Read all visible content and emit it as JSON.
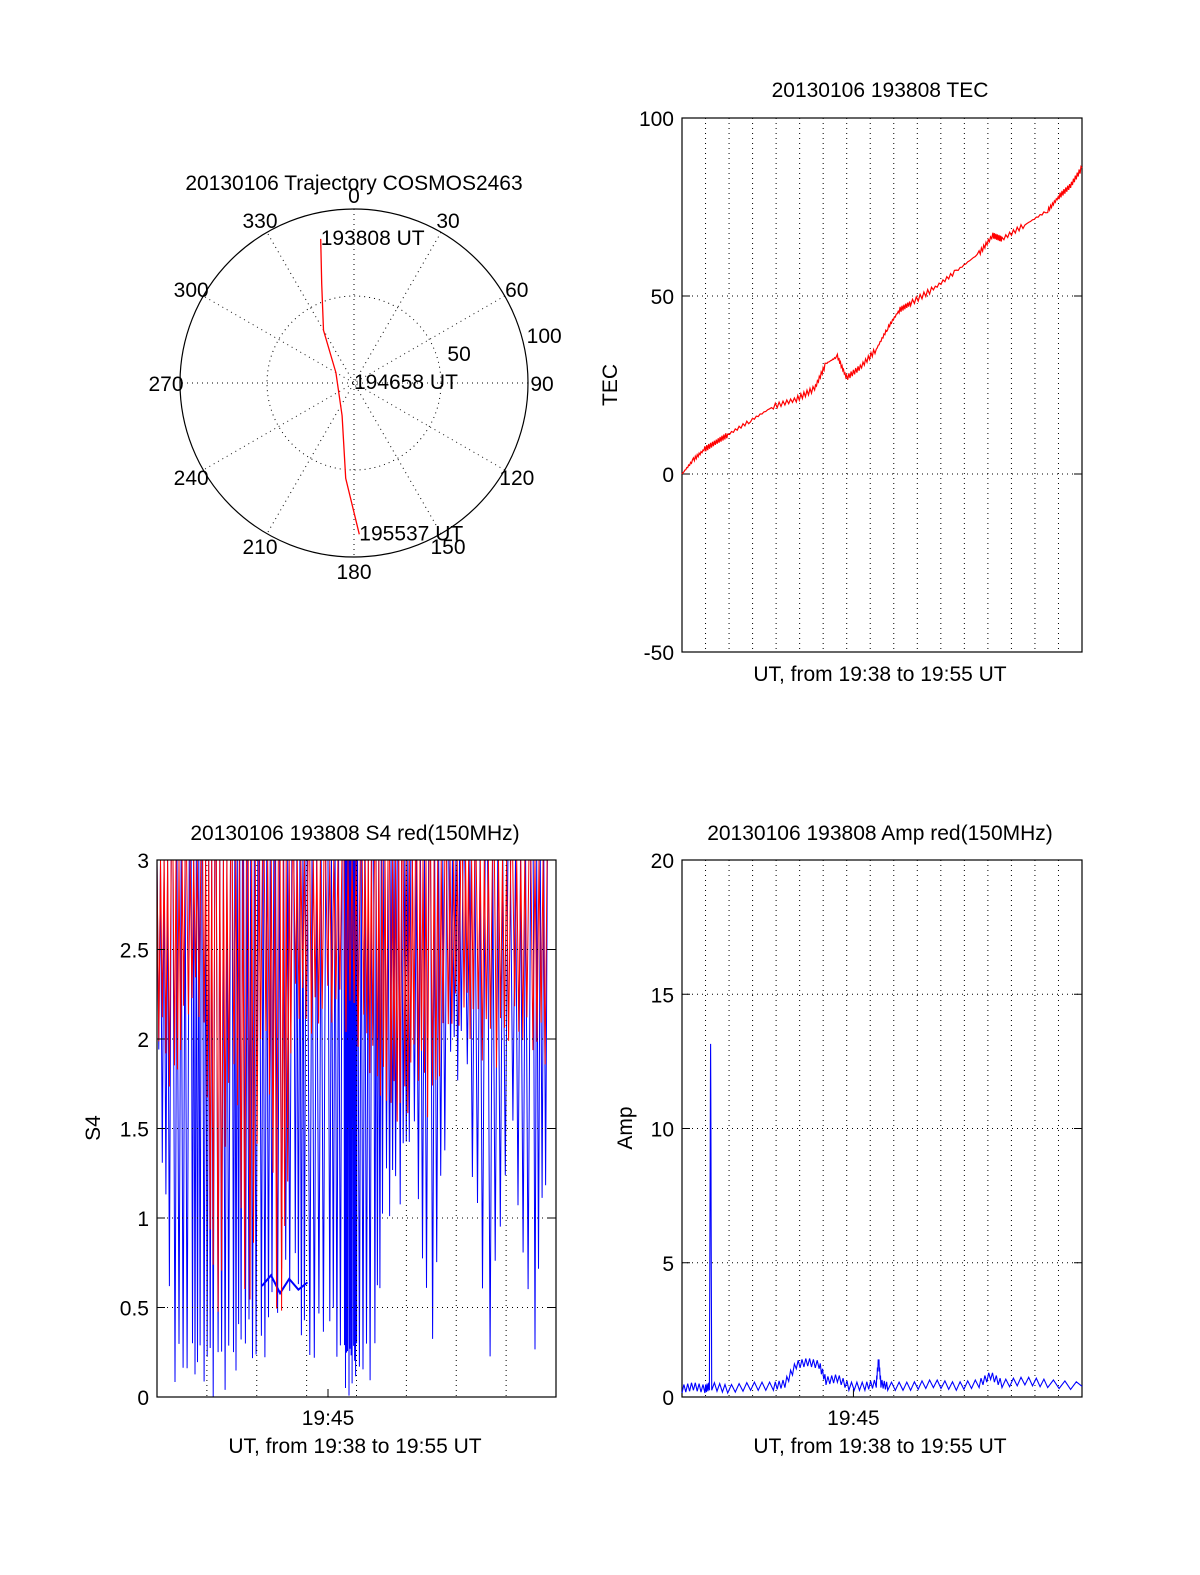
{
  "colors": {
    "red": "#ff0000",
    "blue": "#0000ff",
    "axis": "#000000"
  },
  "chart_data": [
    {
      "id": "trajectory",
      "type": "polar",
      "title": "20130106 Trajectory COSMOS2463",
      "angle_labels": [
        "0",
        "30",
        "60",
        "90",
        "120",
        "150",
        "180",
        "210",
        "240",
        "270",
        "300",
        "330"
      ],
      "radius_labels": [
        "50",
        "100"
      ],
      "rlim": [
        0,
        100
      ],
      "grid": true,
      "trajectory": {
        "color": "red",
        "points": [
          {
            "az": 347,
            "r": 85
          },
          {
            "az": 342,
            "r": 60
          },
          {
            "az": 330,
            "r": 35
          },
          {
            "az": 300,
            "r": 12
          },
          {
            "az": 200,
            "r": 20
          },
          {
            "az": 185,
            "r": 55
          },
          {
            "az": 178,
            "r": 87
          }
        ],
        "labels": [
          {
            "text": "193808 UT",
            "az": 347,
            "r": 85
          },
          {
            "text": "194658 UT",
            "az": 0,
            "r": 0
          },
          {
            "text": "195537 UT",
            "az": 178,
            "r": 87
          }
        ]
      }
    },
    {
      "id": "tec",
      "type": "line",
      "title": "20130106 193808 TEC",
      "xlabel": "UT, from 19:38 to 19:55 UT",
      "ylabel": "TEC",
      "ylim": [
        -50,
        100
      ],
      "yticks": [
        "-50",
        "0",
        "50",
        "100"
      ],
      "xlim_minutes": [
        0,
        17.5
      ],
      "grid": true,
      "series": [
        {
          "color": "red",
          "x": [
            0,
            0.5,
            1,
            1.5,
            2,
            3,
            4,
            5,
            5.8,
            6.3,
            6.8,
            7.2,
            7.8,
            8.5,
            9,
            9.5,
            10,
            11,
            12,
            13,
            13.6,
            14,
            15,
            16,
            16.5,
            17,
            17.5
          ],
          "y": [
            0,
            4,
            7,
            9,
            11,
            15,
            19,
            21,
            24,
            31,
            33,
            27,
            30,
            35,
            41,
            46,
            48,
            52,
            57,
            62,
            67,
            66,
            70,
            74,
            78,
            81,
            86
          ]
        }
      ]
    },
    {
      "id": "s4",
      "type": "line",
      "title": "20130106 193808 S4 red(150MHz)",
      "xlabel": "UT, from 19:38 to 19:55 UT",
      "ylabel": "S4",
      "ylim": [
        0,
        3
      ],
      "yticks": [
        "0",
        "0.5",
        "1",
        "1.5",
        "2",
        "2.5",
        "3"
      ],
      "xticks": [
        {
          "label": "19:45",
          "minute": 7.5
        }
      ],
      "xlim_minutes": [
        0,
        17.5
      ],
      "grid": true,
      "series": [
        {
          "color": "blue",
          "x": [
            0,
            0.7,
            1.5,
            2,
            2.6,
            3.3,
            3.8,
            4.5,
            5.2,
            6,
            6.6,
            7.5,
            8.2,
            8.4,
            8.6,
            8.8,
            9.5,
            10,
            10.6,
            11.2,
            12,
            12.8,
            13.5,
            14.5,
            15.5,
            16.5,
            17.2
          ],
          "y_low": [
            1.9,
            0,
            0,
            0,
            0,
            0,
            0.2,
            0,
            0.4,
            0.6,
            0,
            0.3,
            0,
            0,
            0,
            0,
            0,
            1.0,
            1.0,
            1.4,
            0,
            1.7,
            1.8,
            0,
            1.4,
            0,
            1.5
          ],
          "y_high": [
            3,
            3,
            3,
            3,
            3,
            3,
            3,
            3,
            3,
            3,
            3,
            3,
            3,
            3,
            3,
            3,
            3,
            3,
            3,
            3,
            3,
            3,
            3,
            3,
            3,
            3,
            3
          ]
        },
        {
          "color": "blue",
          "note_band": "flat",
          "x": [
            4.6,
            5,
            5.4,
            5.8,
            6.2,
            6.6
          ],
          "y": [
            0.62,
            0.68,
            0.58,
            0.66,
            0.6,
            0.64
          ]
        },
        {
          "color": "red",
          "x": [
            0,
            0.7,
            1.3,
            2,
            2.6,
            3.3,
            4,
            4.7,
            5.4,
            6,
            6.7,
            7.4,
            8.2,
            9,
            9.6,
            10.2,
            10.8,
            11.4,
            12,
            12.7,
            13.4,
            14,
            14.8,
            15.6,
            16.4,
            17.2
          ],
          "y_low": [
            2.0,
            1.5,
            2.0,
            2.1,
            0,
            2.0,
            0,
            2.2,
            0,
            2.1,
            1.9,
            2.0,
            2.0,
            1.9,
            1.6,
            1.5,
            1.4,
            1.8,
            1.4,
            1.9,
            2.0,
            1.9,
            1.8,
            1.9,
            1.8,
            1.8
          ],
          "y_high": [
            3,
            3,
            3,
            3,
            3,
            3,
            3,
            3,
            3,
            3,
            3,
            3,
            3,
            3,
            3,
            3,
            3,
            3,
            3,
            3,
            3,
            3,
            3,
            3,
            3,
            3
          ]
        }
      ]
    },
    {
      "id": "amp",
      "type": "line",
      "title": "20130106 193808 Amp red(150MHz)",
      "xlabel": "UT, from 19:38 to 19:55 UT",
      "ylabel": "Amp",
      "ylim": [
        0,
        20
      ],
      "yticks": [
        "0",
        "5",
        "10",
        "15",
        "20"
      ],
      "xticks": [
        {
          "label": "19:45",
          "minute": 7.5
        }
      ],
      "xlim_minutes": [
        0,
        17.5
      ],
      "grid": true,
      "series": [
        {
          "color": "blue",
          "x": [
            0,
            0.5,
            1,
            1.2,
            1.25,
            1.3,
            2,
            3,
            4,
            4.5,
            5,
            5.5,
            6,
            6.3,
            6.8,
            7.3,
            8,
            8.5,
            8.6,
            8.7,
            9,
            10,
            11,
            12,
            13,
            13.5,
            14,
            15,
            16,
            17.5
          ],
          "y": [
            0.3,
            0.4,
            0.3,
            0.4,
            13.3,
            0.4,
            0.3,
            0.4,
            0.4,
            0.5,
            1.2,
            1.3,
            1.2,
            0.6,
            0.7,
            0.4,
            0.4,
            0.5,
            1.4,
            0.5,
            0.4,
            0.4,
            0.5,
            0.4,
            0.5,
            0.8,
            0.5,
            0.6,
            0.5,
            0.4
          ]
        }
      ]
    }
  ]
}
